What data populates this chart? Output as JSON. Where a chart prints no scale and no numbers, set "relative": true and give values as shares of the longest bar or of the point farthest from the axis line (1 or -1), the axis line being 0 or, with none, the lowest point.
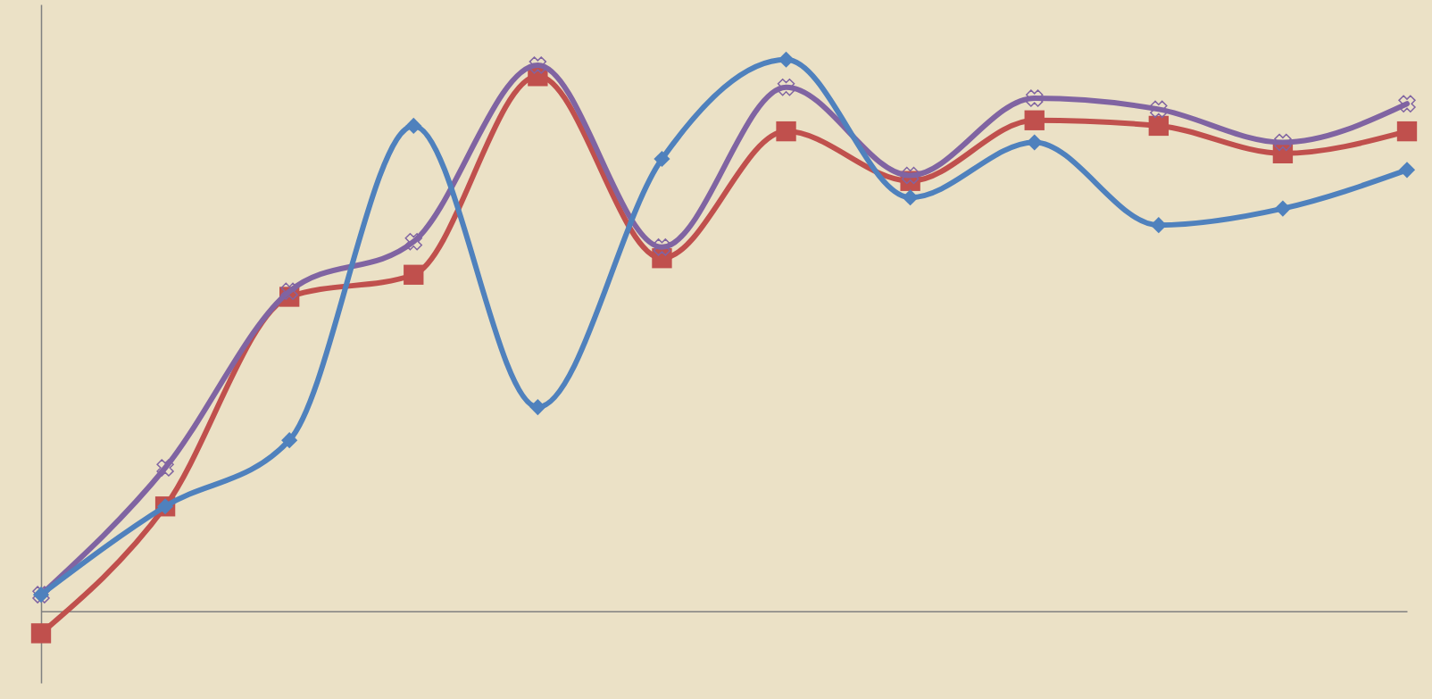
{
  "chart_data": {
    "type": "line",
    "relative": true,
    "categories": [
      null,
      null,
      null,
      null,
      null,
      null,
      null,
      null,
      null,
      null,
      null,
      null
    ],
    "series": [
      {
        "color": "#c0504d",
        "marker": "square",
        "values": [
          -0.04,
          0.19,
          0.57,
          0.61,
          0.97,
          0.64,
          0.87,
          0.78,
          0.89,
          0.88,
          0.83,
          0.87
        ]
      },
      {
        "color": "#8064a2",
        "marker": "cross",
        "values": [
          0.03,
          0.26,
          0.58,
          0.67,
          0.99,
          0.66,
          0.95,
          0.79,
          0.93,
          0.91,
          0.85,
          0.92
        ]
      },
      {
        "color": "#4f81bd",
        "marker": "diamond",
        "values": [
          0.03,
          0.19,
          0.31,
          0.88,
          0.37,
          0.82,
          1,
          0.75,
          0.85,
          0.7,
          0.73,
          0.8
        ]
      }
    ],
    "legend": false,
    "line_style": "solid"
  }
}
